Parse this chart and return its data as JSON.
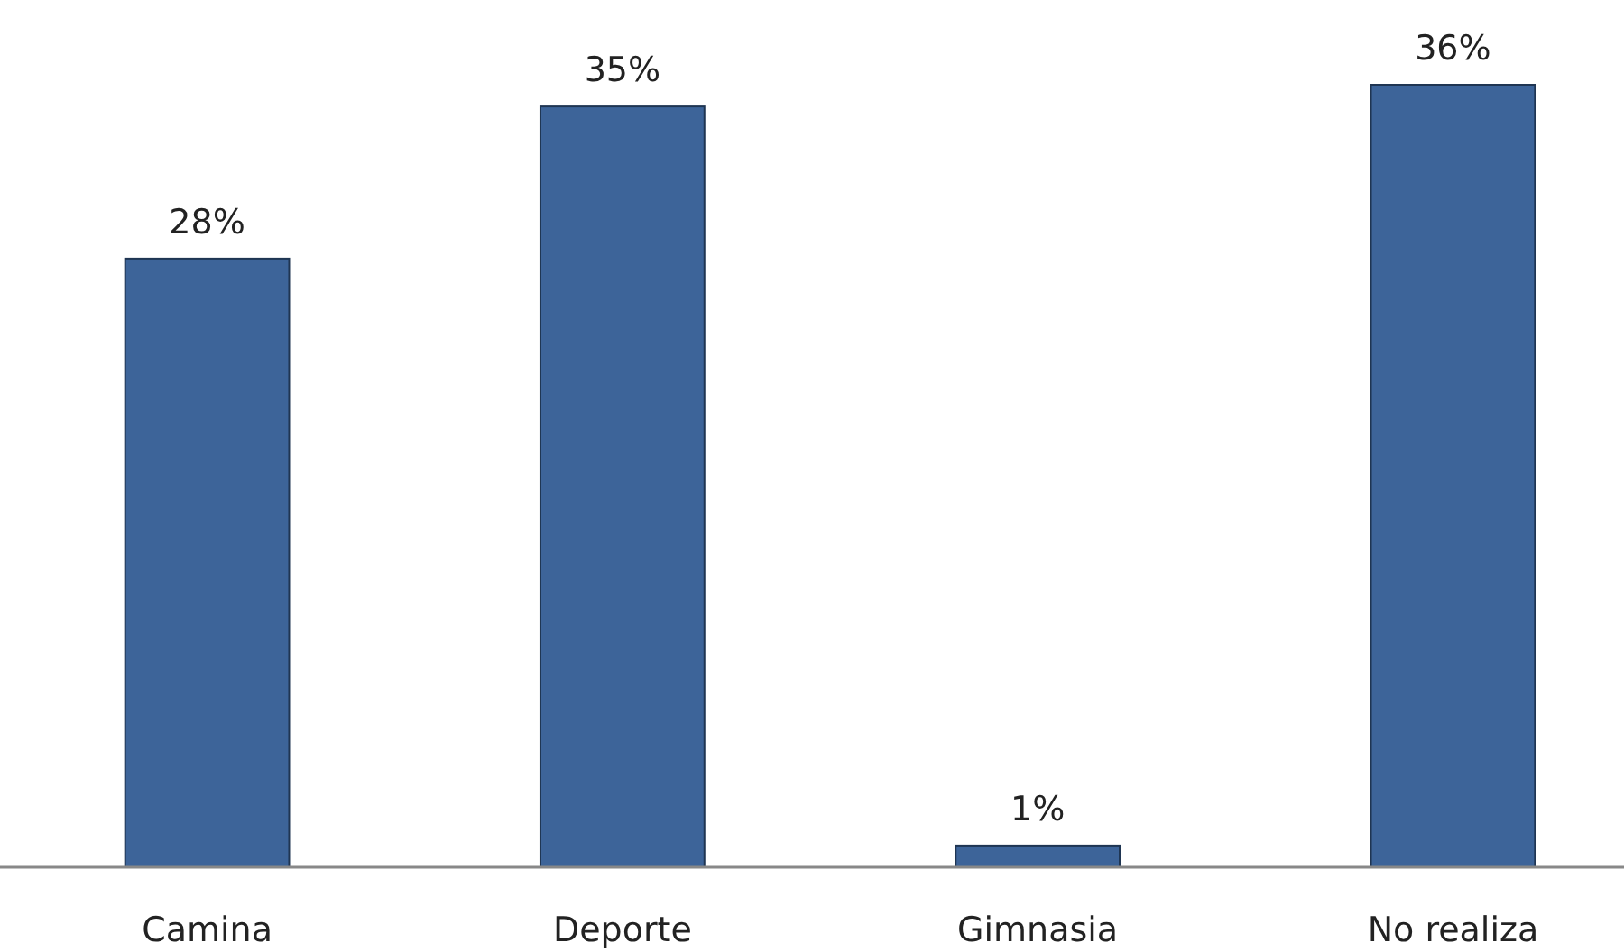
{
  "chart_data": {
    "type": "bar",
    "categories": [
      "Camina",
      "Deporte",
      "Gimnasia",
      "No realiza"
    ],
    "values": [
      28,
      35,
      1,
      36
    ],
    "value_labels": [
      "28%",
      "35%",
      "1%",
      "36%"
    ],
    "color": "#3d6499"
  }
}
